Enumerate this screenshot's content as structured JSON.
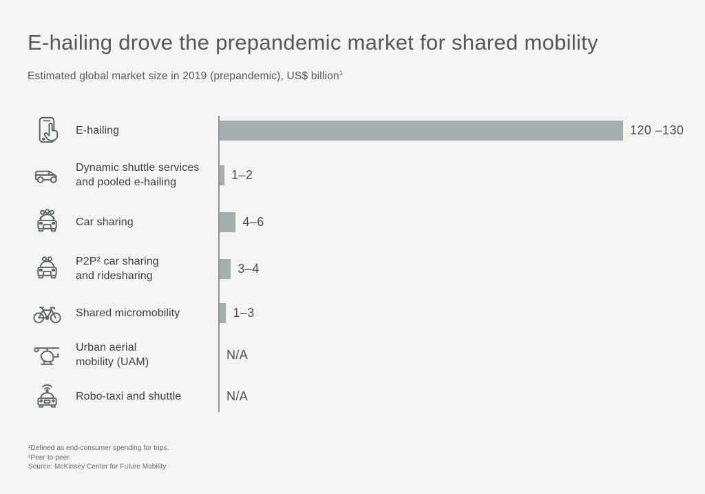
{
  "page": {
    "background": "#f4f4f2"
  },
  "header": {
    "title": "E-hailing drove the prepandemic market for shared mobility",
    "subtitle": "Estimated global market size in 2019 (prepandemic), US$ billion",
    "subtitle_sup": "1"
  },
  "chart_data": {
    "type": "bar",
    "orientation": "horizontal",
    "title": "Estimated global market size in 2019 (prepandemic), US$ billion",
    "unit": "US$ billion",
    "xlim": [
      0,
      130
    ],
    "grid": false,
    "bar_color": "#a3aeae",
    "categories": [
      "E-hailing",
      "Dynamic shuttle services and pooled e-hailing",
      "Car sharing",
      "P2P² car sharing and ridesharing",
      "Shared micromobility",
      "Urban aerial mobility (UAM)",
      "Robo-taxi and shuttle"
    ],
    "rows": [
      {
        "icon": "smartphone-tap-icon",
        "label_lines": [
          "E-hailing",
          null
        ],
        "value_label": "120 –130",
        "range": [
          120,
          130
        ]
      },
      {
        "icon": "shuttle-van-icon",
        "label_lines": [
          "Dynamic shuttle services",
          "and pooled e-hailing"
        ],
        "value_label": "1–2",
        "range": [
          1,
          2
        ]
      },
      {
        "icon": "car-sharing-icon",
        "label_lines": [
          "Car sharing",
          null
        ],
        "value_label": "4–6",
        "range": [
          4,
          6
        ]
      },
      {
        "icon": "p2p-car-icon",
        "label_lines": [
          "P2P² car sharing",
          "and ridesharing"
        ],
        "value_label": "3–4",
        "range": [
          3,
          4
        ]
      },
      {
        "icon": "bicycle-icon",
        "label_lines": [
          "Shared micromobility",
          null
        ],
        "value_label": "1–3",
        "range": [
          1,
          3
        ]
      },
      {
        "icon": "helicopter-icon",
        "label_lines": [
          "Urban aerial",
          "mobility (UAM)"
        ],
        "value_label": "N/A",
        "range": null
      },
      {
        "icon": "robo-taxi-icon",
        "label_lines": [
          "Robo-taxi and shuttle",
          null
        ],
        "value_label": "N/A",
        "range": null
      }
    ]
  },
  "footnotes": {
    "lines": [
      "¹Defined as end-consumer spending for trips.",
      "²Peer to peer.",
      "Source: McKinsey Center for Future Mobility"
    ]
  }
}
